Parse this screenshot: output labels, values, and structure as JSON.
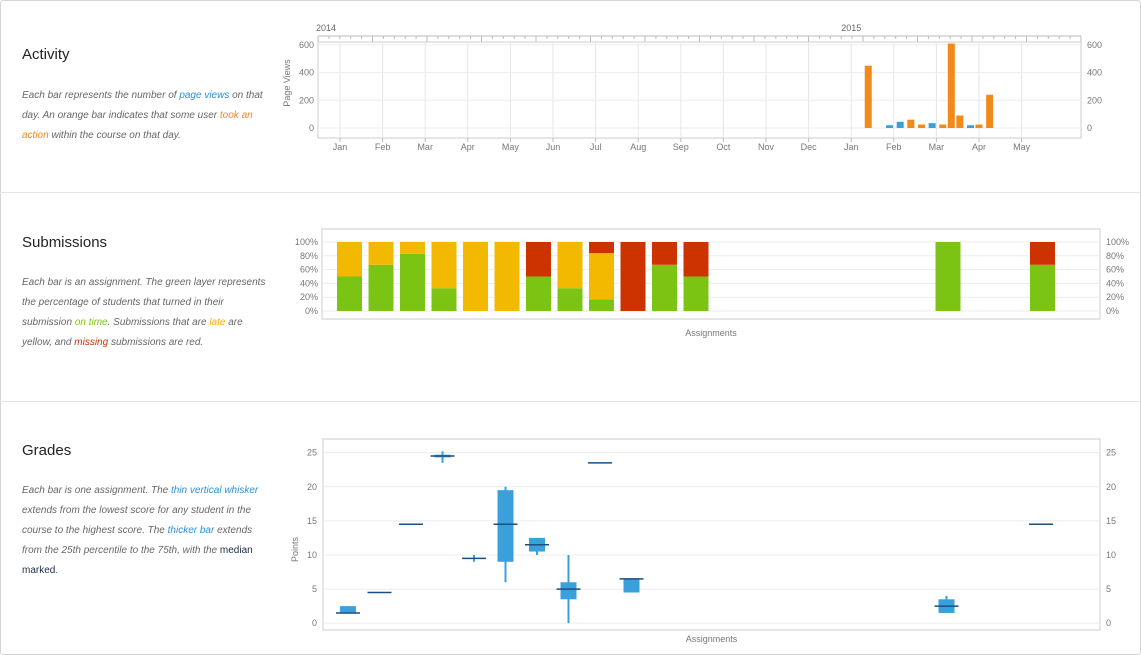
{
  "activity": {
    "title": "Activity",
    "desc": {
      "t1": "Each bar represents the number of ",
      "link1": "page views",
      "t2": " on that day. An orange bar indicates that some user ",
      "link2": "took an action",
      "t3": " within the course on that day."
    },
    "chart_data": {
      "type": "bar",
      "year_labels": [
        "2014",
        "2015"
      ],
      "months": [
        "Jan",
        "Feb",
        "Mar",
        "Apr",
        "May",
        "Jun",
        "Jul",
        "Aug",
        "Sep",
        "Oct",
        "Nov",
        "Dec",
        "Jan",
        "Feb",
        "Mar",
        "Apr",
        "May"
      ],
      "ylabel": "Page Views",
      "yticks": [
        0,
        200,
        400,
        600
      ],
      "ylim": [
        0,
        650
      ],
      "x_unit": "month index from Jan 2014",
      "series": [
        {
          "x": 12.4,
          "value": 450,
          "action": true
        },
        {
          "x": 12.9,
          "value": 20,
          "action": false
        },
        {
          "x": 13.15,
          "value": 45,
          "action": false
        },
        {
          "x": 13.4,
          "value": 60,
          "action": true
        },
        {
          "x": 13.65,
          "value": 25,
          "action": true
        },
        {
          "x": 13.9,
          "value": 35,
          "action": false
        },
        {
          "x": 14.15,
          "value": 25,
          "action": true
        },
        {
          "x": 14.35,
          "value": 610,
          "action": true
        },
        {
          "x": 14.55,
          "value": 90,
          "action": true
        },
        {
          "x": 14.8,
          "value": 20,
          "action": false
        },
        {
          "x": 15.0,
          "value": 25,
          "action": true
        },
        {
          "x": 15.25,
          "value": 240,
          "action": true
        }
      ],
      "colors": {
        "action": "#ef8a1b",
        "view": "#3aa0dc"
      }
    }
  },
  "submissions": {
    "title": "Submissions",
    "desc": {
      "t1": "Each bar is an assignment. The green layer represents the percentage of students that turned in their submission ",
      "link1": "on time",
      "t2": ". Submissions that are ",
      "link2": "late",
      "t3": " are yellow, and ",
      "link3": "missing",
      "t4": " submissions are red."
    },
    "chart_data": {
      "type": "bar",
      "stacked": true,
      "xlabel": "Assignments",
      "yticks": [
        "0%",
        "20%",
        "40%",
        "60%",
        "80%",
        "100%"
      ],
      "ylim": [
        0,
        100
      ],
      "series_order": [
        "on_time",
        "late",
        "missing"
      ],
      "colors": {
        "on_time": "#7cc414",
        "late": "#f3b900",
        "missing": "#cc3300"
      },
      "assignments": [
        {
          "slot": 0,
          "on_time": 50,
          "late": 50,
          "missing": 0
        },
        {
          "slot": 1,
          "on_time": 67,
          "late": 33,
          "missing": 0
        },
        {
          "slot": 2,
          "on_time": 83,
          "late": 17,
          "missing": 0
        },
        {
          "slot": 3,
          "on_time": 33,
          "late": 67,
          "missing": 0
        },
        {
          "slot": 4,
          "on_time": 0,
          "late": 100,
          "missing": 0
        },
        {
          "slot": 5,
          "on_time": 0,
          "late": 100,
          "missing": 0
        },
        {
          "slot": 6,
          "on_time": 50,
          "late": 0,
          "missing": 50
        },
        {
          "slot": 7,
          "on_time": 33,
          "late": 67,
          "missing": 0
        },
        {
          "slot": 8,
          "on_time": 17,
          "late": 67,
          "missing": 16
        },
        {
          "slot": 9,
          "on_time": 0,
          "late": 0,
          "missing": 100
        },
        {
          "slot": 10,
          "on_time": 67,
          "late": 0,
          "missing": 33
        },
        {
          "slot": 11,
          "on_time": 50,
          "late": 0,
          "missing": 50
        },
        {
          "slot": 19,
          "on_time": 100,
          "late": 0,
          "missing": 0
        },
        {
          "slot": 22,
          "on_time": 67,
          "late": 0,
          "missing": 33
        }
      ]
    }
  },
  "grades": {
    "title": "Grades",
    "desc": {
      "t1": "Each bar is one assignment. The ",
      "link1": "thin vertical whisker",
      "t2": " extends from the lowest score for any student in the course to the highest score. The ",
      "link2": "thicker bar",
      "t3": " extends from the 25th percentile to the 75th, with the ",
      "link3": "median marked",
      "t4": "."
    },
    "chart_data": {
      "type": "box",
      "xlabel": "Assignments",
      "ylabel": "Points",
      "yticks": [
        0,
        5,
        10,
        15,
        20,
        25
      ],
      "ylim": [
        -1,
        27
      ],
      "colors": {
        "box": "#3aa0dc",
        "median": "#1c4e80"
      },
      "assignments": [
        {
          "slot": 0,
          "min": 1.5,
          "q1": 1.5,
          "median": 1.5,
          "q3": 2.5,
          "max": 2.5
        },
        {
          "slot": 1,
          "min": 4.5,
          "q1": 4.5,
          "median": 4.5,
          "q3": 4.5,
          "max": 4.5
        },
        {
          "slot": 2,
          "min": 14.5,
          "q1": 14.5,
          "median": 14.5,
          "q3": 14.5,
          "max": 14.5
        },
        {
          "slot": 3,
          "min": 23.5,
          "q1": 24.3,
          "median": 24.5,
          "q3": 24.7,
          "max": 25.2
        },
        {
          "slot": 4,
          "min": 9,
          "q1": 9.5,
          "median": 9.5,
          "q3": 9.5,
          "max": 10
        },
        {
          "slot": 5,
          "min": 6,
          "q1": 9,
          "median": 14.5,
          "q3": 19.5,
          "max": 20
        },
        {
          "slot": 6,
          "min": 10,
          "q1": 10.5,
          "median": 11.5,
          "q3": 12.5,
          "max": 12.5
        },
        {
          "slot": 7,
          "min": 0,
          "q1": 3.5,
          "median": 5,
          "q3": 6,
          "max": 10
        },
        {
          "slot": 8,
          "min": 23.5,
          "q1": 23.5,
          "median": 23.5,
          "q3": 23.5,
          "max": 23.5
        },
        {
          "slot": 9,
          "min": 4.5,
          "q1": 4.5,
          "median": 6.5,
          "q3": 6.5,
          "max": 6.5
        },
        {
          "slot": 19,
          "min": 1.5,
          "q1": 1.5,
          "median": 2.5,
          "q3": 3.5,
          "max": 4
        },
        {
          "slot": 22,
          "min": 14.5,
          "q1": 14.5,
          "median": 14.5,
          "q3": 14.5,
          "max": 14.5
        }
      ]
    }
  }
}
